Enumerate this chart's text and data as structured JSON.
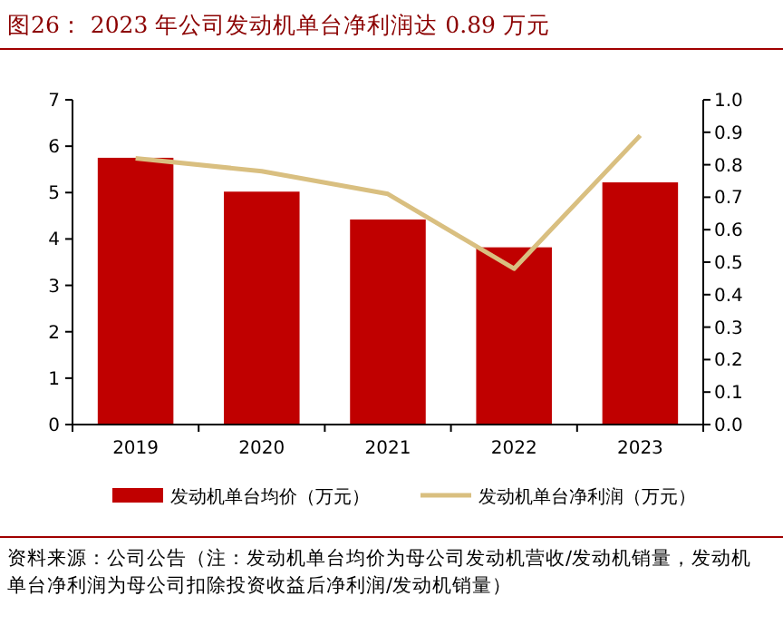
{
  "chart_data": {
    "type": "bar",
    "title": "图26：  2023 年公司发动机单台净利润达 0.89 万元",
    "categories": [
      "2019",
      "2020",
      "2021",
      "2022",
      "2023"
    ],
    "series": [
      {
        "name": "发动机单台均价（万元）",
        "color": "#c00000",
        "values": [
          5.75,
          5.02,
          4.42,
          3.82,
          5.22
        ]
      },
      {
        "name": "发动机单台净利润（万元）",
        "color": "#d9bf80",
        "type": "line",
        "axis": "y2",
        "values": [
          0.82,
          0.78,
          0.71,
          0.48,
          0.89
        ]
      }
    ],
    "ylim": [
      0,
      7
    ],
    "yticks": [
      0,
      1,
      2,
      3,
      4,
      5,
      6,
      7
    ],
    "y2lim": [
      0,
      1
    ],
    "y2ticks": [
      {
        "value": 0,
        "label": "0.0"
      },
      {
        "value": 0.1,
        "label": "0.1"
      },
      {
        "value": 0.2,
        "label": "0.2"
      },
      {
        "value": 0.3,
        "label": "0.3"
      },
      {
        "value": 0.4,
        "label": "0.4"
      },
      {
        "value": 0.5,
        "label": "0.5"
      },
      {
        "value": 0.6,
        "label": "0.6"
      },
      {
        "value": 0.7,
        "label": "0.7"
      },
      {
        "value": 0.8,
        "label": "0.8"
      },
      {
        "value": 0.9,
        "label": "0.9"
      },
      {
        "value": 1,
        "label": "1.0"
      }
    ],
    "legend": "bottom",
    "marker": "none",
    "line_style": "solid",
    "annotations": [
      "资料来源：公司公告（注：发动机单台均价为母公司发动机营收/发动机销量，发动机单台净利润为母公司扣除投资收益后净利润/发动机销量）"
    ]
  }
}
